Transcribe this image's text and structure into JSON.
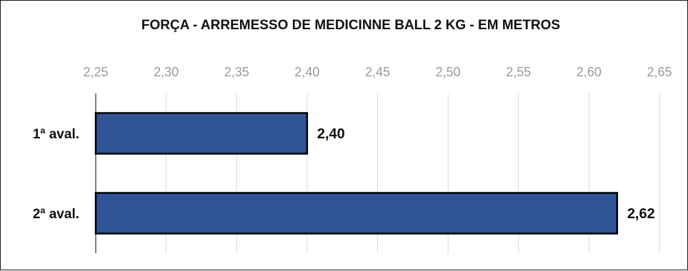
{
  "chart_data": {
    "type": "bar",
    "orientation": "horizontal",
    "title": "FORÇA - ARREMESSO DE MEDICINNE BALL 2 KG - EM METROS",
    "xlabel": "",
    "ylabel": "",
    "categories": [
      "1ª aval.",
      "2ª aval."
    ],
    "values": [
      2.4,
      2.62
    ],
    "data_labels": [
      "2,40",
      "2,62"
    ],
    "xlim": [
      2.25,
      2.65
    ],
    "xticks": [
      2.25,
      2.3,
      2.35,
      2.4,
      2.45,
      2.5,
      2.55,
      2.6,
      2.65
    ],
    "xtick_labels": [
      "2,25",
      "2,30",
      "2,35",
      "2,40",
      "2,45",
      "2,50",
      "2,55",
      "2,60",
      "2,65"
    ],
    "x_axis_position": "top",
    "grid": true,
    "legend": "none",
    "bar_color": "#2f5597",
    "bar_edge_color": "#000000"
  }
}
